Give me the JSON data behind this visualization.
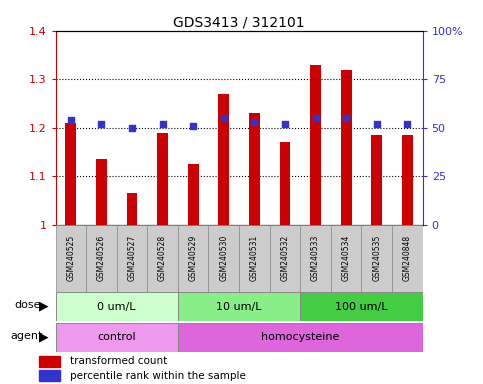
{
  "title": "GDS3413 / 312101",
  "samples": [
    "GSM240525",
    "GSM240526",
    "GSM240527",
    "GSM240528",
    "GSM240529",
    "GSM240530",
    "GSM240531",
    "GSM240532",
    "GSM240533",
    "GSM240534",
    "GSM240535",
    "GSM240848"
  ],
  "red_values": [
    1.21,
    1.135,
    1.065,
    1.19,
    1.125,
    1.27,
    1.23,
    1.17,
    1.33,
    1.32,
    1.185,
    1.185
  ],
  "blue_values": [
    54,
    52,
    50,
    52,
    51,
    55,
    53,
    52,
    55,
    55,
    52,
    52
  ],
  "ylim_left": [
    1.0,
    1.4
  ],
  "ylim_right": [
    0,
    100
  ],
  "yticks_left": [
    1.0,
    1.1,
    1.2,
    1.3,
    1.4
  ],
  "ytick_labels_left": [
    "1",
    "1.1",
    "1.2",
    "1.3",
    "1.4"
  ],
  "yticks_right": [
    0,
    25,
    50,
    75,
    100
  ],
  "ytick_labels_right": [
    "0",
    "25",
    "50",
    "75",
    "100%"
  ],
  "red_color": "#cc0000",
  "blue_color": "#3333cc",
  "dose_groups": [
    {
      "label": "0 um/L",
      "start": 0,
      "end": 4,
      "color": "#ccffcc"
    },
    {
      "label": "10 um/L",
      "start": 4,
      "end": 8,
      "color": "#88ee88"
    },
    {
      "label": "100 um/L",
      "start": 8,
      "end": 12,
      "color": "#44cc44"
    }
  ],
  "agent_groups": [
    {
      "label": "control",
      "start": 0,
      "end": 4,
      "color": "#ee99ee"
    },
    {
      "label": "homocysteine",
      "start": 4,
      "end": 12,
      "color": "#dd66dd"
    }
  ],
  "dose_label": "dose",
  "agent_label": "agent",
  "legend_red": "transformed count",
  "legend_blue": "percentile rank within the sample",
  "bar_width": 0.35,
  "background_color": "#ffffff",
  "plot_bg_color": "#ffffff",
  "sample_bg_color": "#cccccc",
  "border_color": "#888888"
}
